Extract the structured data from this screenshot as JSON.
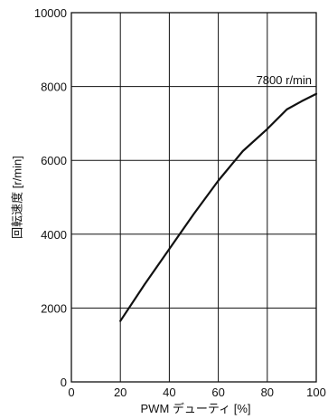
{
  "chart_data": {
    "type": "line",
    "title": "",
    "xlabel": "PWM デューティ [%]",
    "ylabel": "回転速度 [r/min]",
    "xlim": [
      0,
      100
    ],
    "ylim": [
      0,
      10000
    ],
    "grid": true,
    "x_ticks": [
      0,
      20,
      40,
      60,
      80,
      100
    ],
    "y_ticks": [
      0,
      2000,
      4000,
      6000,
      8000,
      10000
    ],
    "x_tick_labels": [
      "0",
      "20",
      "40",
      "60",
      "80",
      "100"
    ],
    "y_tick_labels": [
      "0",
      "2000",
      "4000",
      "6000",
      "8000",
      "10000"
    ],
    "series": [
      {
        "x": [
          20,
          30,
          40,
          50,
          60,
          70,
          80,
          88,
          94,
          100
        ],
        "y": [
          1650,
          2650,
          3600,
          4550,
          5450,
          6250,
          6850,
          7380,
          7600,
          7800
        ]
      }
    ],
    "annotations": [
      {
        "text": "7800 r/min",
        "x": 100,
        "y": 7800
      }
    ],
    "colors": {
      "line": "#111111",
      "grid": "#111111",
      "frame": "#111111"
    }
  }
}
